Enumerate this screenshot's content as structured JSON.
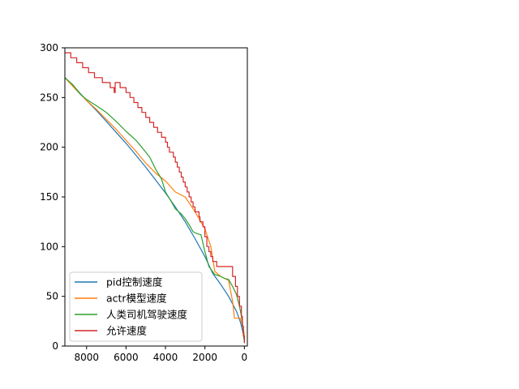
{
  "chart_data": {
    "type": "line",
    "title": "",
    "xlabel": "",
    "ylabel": "",
    "x_inverted": true,
    "xlim": [
      9100,
      -150
    ],
    "ylim": [
      0,
      300
    ],
    "xticks": [
      8000,
      6000,
      4000,
      2000,
      0
    ],
    "xtick_labels": [
      "8000",
      "6000",
      "4000",
      "2000",
      "0"
    ],
    "yticks": [
      0,
      50,
      100,
      150,
      200,
      250,
      300
    ],
    "ytick_labels": [
      "0",
      "50",
      "100",
      "150",
      "200",
      "250",
      "300"
    ],
    "grid": false,
    "legend_position": "lower-left",
    "series": [
      {
        "name": "pid控制速度",
        "color": "#1f77b4",
        "points": [
          [
            9100,
            270
          ],
          [
            8500,
            258
          ],
          [
            8000,
            247
          ],
          [
            7500,
            237
          ],
          [
            7000,
            226
          ],
          [
            6500,
            215
          ],
          [
            6000,
            204
          ],
          [
            5500,
            192
          ],
          [
            5000,
            180
          ],
          [
            4500,
            167
          ],
          [
            4000,
            154
          ],
          [
            3500,
            140
          ],
          [
            3000,
            125
          ],
          [
            2500,
            108
          ],
          [
            2000,
            90
          ],
          [
            1600,
            73
          ],
          [
            1200,
            62
          ],
          [
            800,
            50
          ],
          [
            400,
            35
          ],
          [
            200,
            24
          ],
          [
            50,
            12
          ],
          [
            0,
            5
          ]
        ]
      },
      {
        "name": "actr模型速度",
        "color": "#ff7f0e",
        "points": [
          [
            9100,
            270
          ],
          [
            8500,
            257
          ],
          [
            8000,
            247
          ],
          [
            7500,
            238
          ],
          [
            7000,
            228
          ],
          [
            6500,
            218
          ],
          [
            6000,
            207
          ],
          [
            5500,
            196
          ],
          [
            5000,
            184
          ],
          [
            4500,
            174
          ],
          [
            4000,
            166
          ],
          [
            3500,
            155
          ],
          [
            3000,
            150
          ],
          [
            2500,
            135
          ],
          [
            2000,
            118
          ],
          [
            1700,
            100
          ],
          [
            1500,
            75
          ],
          [
            1200,
            70
          ],
          [
            800,
            66
          ],
          [
            600,
            45
          ],
          [
            500,
            28
          ],
          [
            200,
            28
          ],
          [
            50,
            18
          ],
          [
            0,
            10
          ]
        ]
      },
      {
        "name": "人类司机驾驶速度",
        "color": "#2ca02c",
        "points": [
          [
            9100,
            270
          ],
          [
            8700,
            263
          ],
          [
            8300,
            253
          ],
          [
            8000,
            248
          ],
          [
            7600,
            243
          ],
          [
            7000,
            235
          ],
          [
            6500,
            226
          ],
          [
            6000,
            216
          ],
          [
            5500,
            207
          ],
          [
            5200,
            200
          ],
          [
            4800,
            190
          ],
          [
            4500,
            178
          ],
          [
            4200,
            168
          ],
          [
            4000,
            155
          ],
          [
            3700,
            145
          ],
          [
            3500,
            138
          ],
          [
            3200,
            133
          ],
          [
            3000,
            128
          ],
          [
            2800,
            122
          ],
          [
            2600,
            115
          ],
          [
            2400,
            113
          ],
          [
            2200,
            112
          ],
          [
            2000,
            95
          ],
          [
            1800,
            80
          ],
          [
            1500,
            72
          ],
          [
            1200,
            70
          ],
          [
            1000,
            68
          ],
          [
            800,
            67
          ],
          [
            600,
            60
          ],
          [
            400,
            52
          ],
          [
            250,
            40
          ],
          [
            100,
            25
          ],
          [
            0,
            3
          ]
        ]
      },
      {
        "name": "允许速度",
        "color": "#d62728",
        "step": true,
        "points": [
          [
            9100,
            295
          ],
          [
            8800,
            290
          ],
          [
            8500,
            285
          ],
          [
            8200,
            280
          ],
          [
            7900,
            275
          ],
          [
            7600,
            270
          ],
          [
            7200,
            265
          ],
          [
            6800,
            260
          ],
          [
            6600,
            255
          ],
          [
            6550,
            265
          ],
          [
            6300,
            260
          ],
          [
            6000,
            255
          ],
          [
            5800,
            250
          ],
          [
            5600,
            245
          ],
          [
            5400,
            240
          ],
          [
            5200,
            235
          ],
          [
            5000,
            230
          ],
          [
            4800,
            225
          ],
          [
            4600,
            220
          ],
          [
            4400,
            215
          ],
          [
            4200,
            210
          ],
          [
            4000,
            205
          ],
          [
            3900,
            200
          ],
          [
            3800,
            195
          ],
          [
            3600,
            190
          ],
          [
            3500,
            185
          ],
          [
            3400,
            180
          ],
          [
            3300,
            175
          ],
          [
            3200,
            170
          ],
          [
            3100,
            165
          ],
          [
            3000,
            160
          ],
          [
            2900,
            155
          ],
          [
            2800,
            150
          ],
          [
            2700,
            145
          ],
          [
            2600,
            140
          ],
          [
            2500,
            135
          ],
          [
            2300,
            130
          ],
          [
            2250,
            125
          ],
          [
            2100,
            120
          ],
          [
            2000,
            110
          ],
          [
            1900,
            100
          ],
          [
            1800,
            95
          ],
          [
            1700,
            90
          ],
          [
            1600,
            85
          ],
          [
            1400,
            80
          ],
          [
            600,
            70
          ],
          [
            450,
            60
          ],
          [
            350,
            50
          ],
          [
            250,
            40
          ],
          [
            150,
            30
          ],
          [
            100,
            20
          ],
          [
            50,
            10
          ],
          [
            0,
            3
          ]
        ]
      }
    ]
  }
}
